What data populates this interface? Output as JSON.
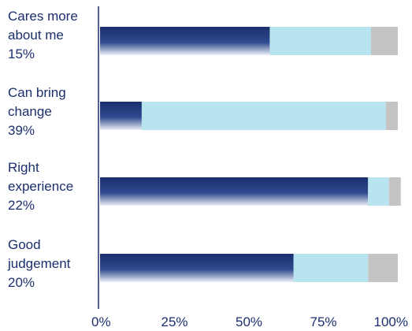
{
  "chart_data": {
    "type": "bar",
    "orientation": "horizontal",
    "stacked": true,
    "categories": [
      [
        "Cares more",
        "about me"
      ],
      [
        "Can bring",
        "change"
      ],
      [
        "Right",
        "experience"
      ],
      [
        "Good",
        "judgement"
      ]
    ],
    "category_values": [
      "15%",
      "39%",
      "22%",
      "20%"
    ],
    "series": [
      {
        "values": [
          57,
          14,
          90,
          65
        ],
        "color": "#1b2f6e"
      },
      {
        "values": [
          34,
          82,
          7,
          25
        ],
        "color": "#b8e4f0"
      },
      {
        "values": [
          9,
          4,
          4,
          10
        ],
        "color": "#c4c4c4"
      }
    ],
    "xlim": [
      0,
      100
    ],
    "ticks": [
      "0%",
      "25%",
      "50%",
      "75%",
      "100%"
    ],
    "tick_values": [
      0,
      25,
      50,
      75,
      100
    ],
    "grid": false,
    "legend": "none",
    "colors": {
      "text": "#1b2f6e",
      "axis": "#1b2f6e"
    }
  }
}
